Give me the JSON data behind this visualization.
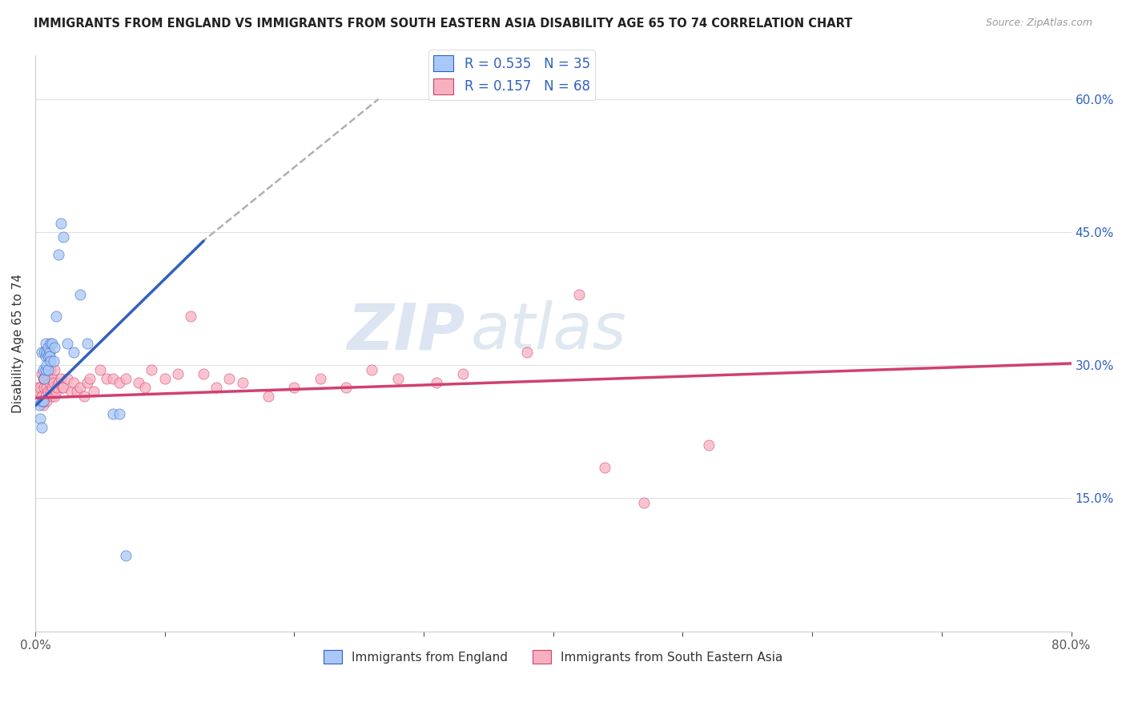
{
  "title": "IMMIGRANTS FROM ENGLAND VS IMMIGRANTS FROM SOUTH EASTERN ASIA DISABILITY AGE 65 TO 74 CORRELATION CHART",
  "source": "Source: ZipAtlas.com",
  "ylabel": "Disability Age 65 to 74",
  "x_min": 0.0,
  "x_max": 0.8,
  "y_min": 0.0,
  "y_max": 0.65,
  "y_ticks_right": [
    0.15,
    0.3,
    0.45,
    0.6
  ],
  "y_tick_labels_right": [
    "15.0%",
    "30.0%",
    "45.0%",
    "60.0%"
  ],
  "watermark_zip": "ZIP",
  "watermark_atlas": "atlas",
  "legend_r1": "R = 0.535",
  "legend_n1": "N = 35",
  "legend_r2": "R = 0.157",
  "legend_n2": "N = 68",
  "color_england": "#a8c8f8",
  "color_sea": "#f8b0c0",
  "color_england_line": "#3060c0",
  "color_sea_line": "#d04070",
  "england_scatter_x": [
    0.003,
    0.004,
    0.005,
    0.005,
    0.005,
    0.006,
    0.006,
    0.007,
    0.007,
    0.008,
    0.008,
    0.008,
    0.009,
    0.009,
    0.01,
    0.01,
    0.01,
    0.011,
    0.011,
    0.012,
    0.012,
    0.013,
    0.014,
    0.015,
    0.016,
    0.018,
    0.02,
    0.022,
    0.025,
    0.03,
    0.035,
    0.04,
    0.06,
    0.065,
    0.07
  ],
  "england_scatter_y": [
    0.255,
    0.24,
    0.26,
    0.23,
    0.315,
    0.26,
    0.295,
    0.285,
    0.315,
    0.295,
    0.31,
    0.325,
    0.3,
    0.315,
    0.295,
    0.31,
    0.32,
    0.315,
    0.31,
    0.325,
    0.305,
    0.325,
    0.305,
    0.32,
    0.355,
    0.425,
    0.46,
    0.445,
    0.325,
    0.315,
    0.38,
    0.325,
    0.245,
    0.245,
    0.085
  ],
  "sea_scatter_x": [
    0.002,
    0.003,
    0.004,
    0.005,
    0.005,
    0.006,
    0.006,
    0.007,
    0.007,
    0.007,
    0.008,
    0.008,
    0.009,
    0.009,
    0.01,
    0.01,
    0.011,
    0.012,
    0.012,
    0.013,
    0.013,
    0.013,
    0.014,
    0.015,
    0.015,
    0.016,
    0.017,
    0.018,
    0.02,
    0.021,
    0.022,
    0.025,
    0.028,
    0.03,
    0.032,
    0.035,
    0.038,
    0.04,
    0.042,
    0.045,
    0.05,
    0.055,
    0.06,
    0.065,
    0.07,
    0.08,
    0.085,
    0.09,
    0.1,
    0.11,
    0.12,
    0.13,
    0.14,
    0.15,
    0.16,
    0.18,
    0.2,
    0.22,
    0.24,
    0.26,
    0.28,
    0.31,
    0.33,
    0.38,
    0.42,
    0.44,
    0.47,
    0.52
  ],
  "sea_scatter_y": [
    0.275,
    0.27,
    0.275,
    0.265,
    0.29,
    0.255,
    0.285,
    0.275,
    0.26,
    0.285,
    0.265,
    0.29,
    0.275,
    0.26,
    0.285,
    0.27,
    0.28,
    0.27,
    0.295,
    0.265,
    0.285,
    0.275,
    0.28,
    0.265,
    0.295,
    0.27,
    0.275,
    0.28,
    0.285,
    0.275,
    0.275,
    0.285,
    0.27,
    0.28,
    0.27,
    0.275,
    0.265,
    0.28,
    0.285,
    0.27,
    0.295,
    0.285,
    0.285,
    0.28,
    0.285,
    0.28,
    0.275,
    0.295,
    0.285,
    0.29,
    0.355,
    0.29,
    0.275,
    0.285,
    0.28,
    0.265,
    0.275,
    0.285,
    0.275,
    0.295,
    0.285,
    0.28,
    0.29,
    0.315,
    0.38,
    0.185,
    0.145,
    0.21
  ],
  "england_line_x": [
    0.0,
    0.13
  ],
  "england_line_y": [
    0.254,
    0.44
  ],
  "sea_line_x": [
    0.0,
    0.8
  ],
  "sea_line_y": [
    0.263,
    0.302
  ],
  "dash_line_x": [
    0.128,
    0.265
  ],
  "dash_line_y": [
    0.438,
    0.6
  ],
  "background_color": "#ffffff",
  "grid_color": "#e0e0e0"
}
